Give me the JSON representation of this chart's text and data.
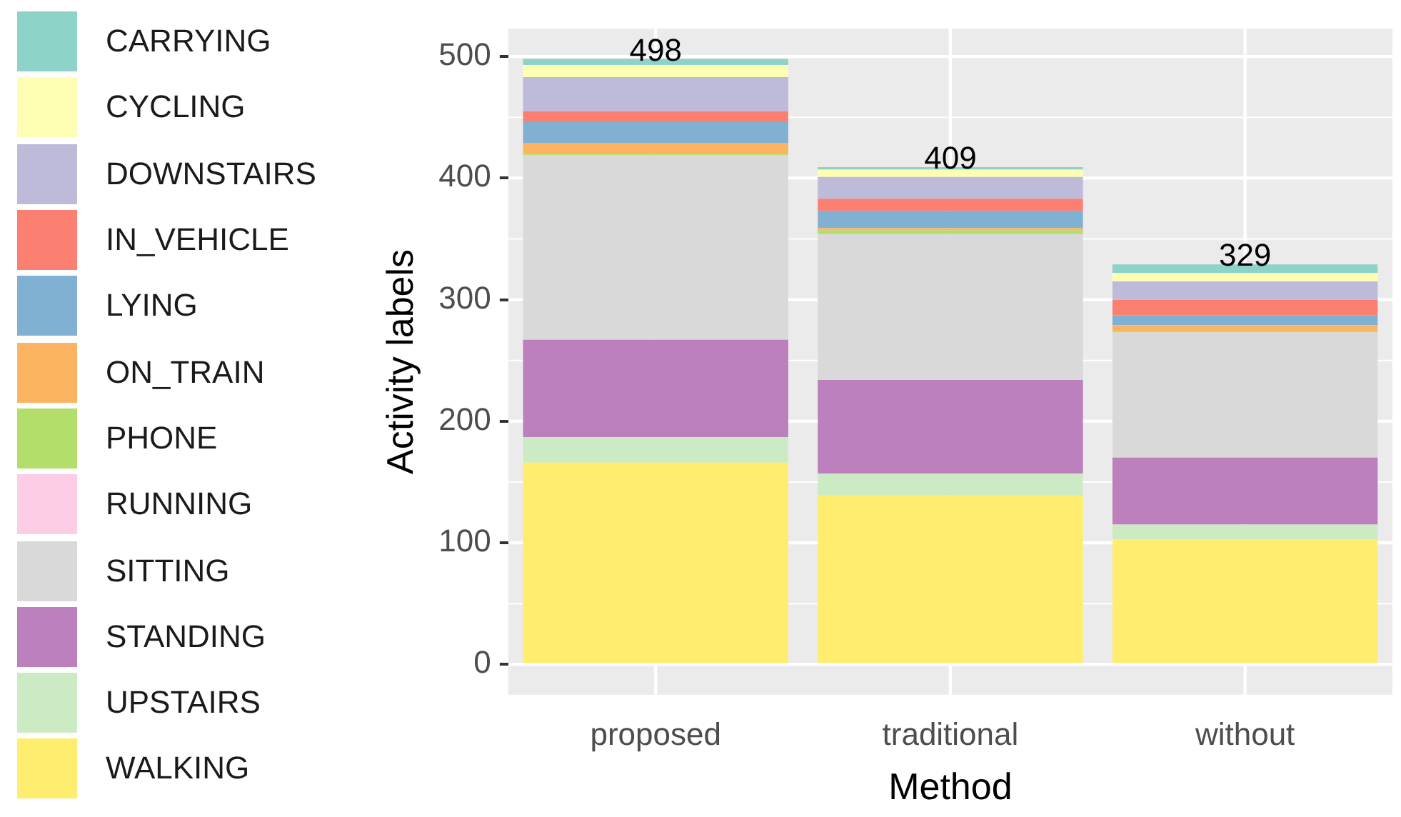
{
  "chart_data": {
    "type": "bar",
    "stacked": true,
    "xlabel": "Method",
    "ylabel": "Activity labels",
    "categories": [
      "proposed",
      "traditional",
      "without"
    ],
    "series": [
      {
        "name": "WALKING",
        "color": "#ffed6f",
        "values": [
          166,
          139,
          103
        ]
      },
      {
        "name": "UPSTAIRS",
        "color": "#ccebc5",
        "values": [
          21,
          18,
          12
        ]
      },
      {
        "name": "STANDING",
        "color": "#bc80bd",
        "values": [
          80,
          77,
          55
        ]
      },
      {
        "name": "SITTING",
        "color": "#d9d9d9",
        "values": [
          152,
          120,
          103
        ]
      },
      {
        "name": "RUNNING",
        "color": "#fccde5",
        "values": [
          0,
          0,
          0
        ]
      },
      {
        "name": "PHONE",
        "color": "#b3de69",
        "values": [
          1,
          3,
          1
        ]
      },
      {
        "name": "ON_TRAIN",
        "color": "#fdb462",
        "values": [
          9,
          2,
          5
        ]
      },
      {
        "name": "LYING",
        "color": "#80b1d3",
        "values": [
          17,
          14,
          8
        ]
      },
      {
        "name": "IN_VEHICLE",
        "color": "#fb8072",
        "values": [
          9,
          10,
          13
        ]
      },
      {
        "name": "DOWNSTAIRS",
        "color": "#bebada",
        "values": [
          28,
          18,
          15
        ]
      },
      {
        "name": "CYCLING",
        "color": "#ffffb3",
        "values": [
          10,
          6,
          7
        ]
      },
      {
        "name": "CARRYING",
        "color": "#8dd3c7",
        "values": [
          5,
          2,
          7
        ]
      }
    ],
    "totals": [
      "498",
      "409",
      "329"
    ],
    "ylim": [
      -25,
      523
    ],
    "yticks": [
      0,
      100,
      200,
      300,
      400,
      500
    ],
    "grid": true,
    "legend": "left"
  }
}
